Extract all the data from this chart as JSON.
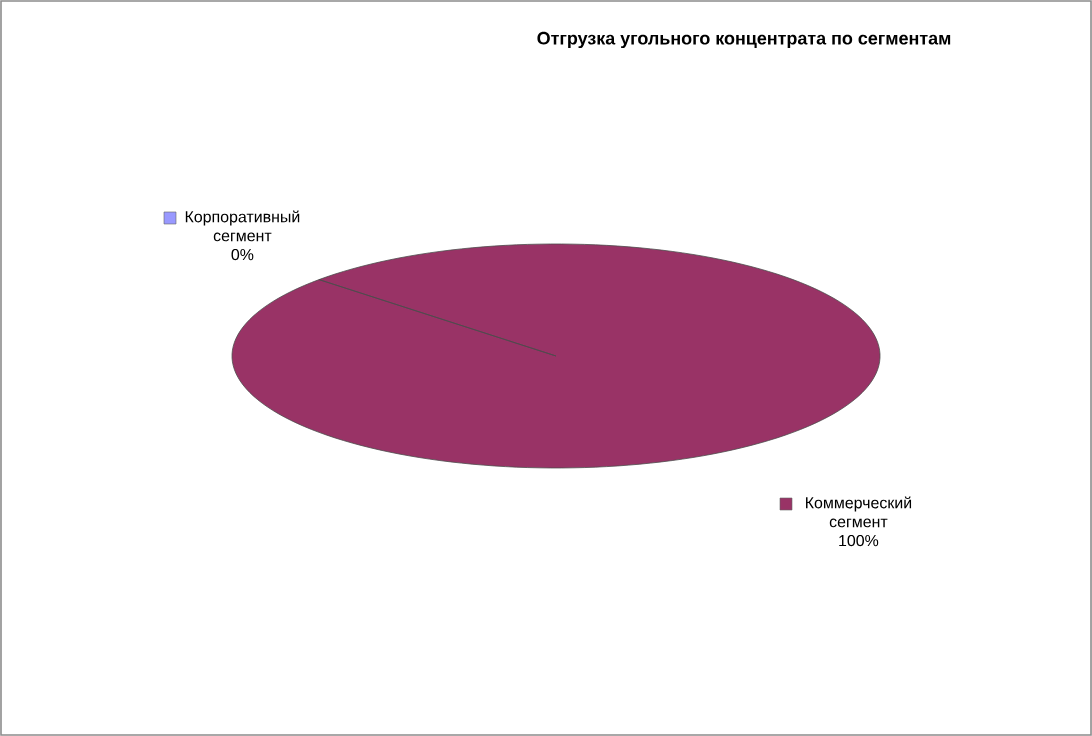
{
  "chart_data": {
    "type": "pie",
    "title": "Отгрузка угольного  концентрата  по сегментам",
    "categories": [
      "Корпоративный сегмент",
      "Коммерческий сегмент"
    ],
    "values": [
      0,
      100
    ],
    "value_labels": [
      "0%",
      "100%"
    ],
    "colors": [
      "#9999ff",
      "#993366"
    ]
  }
}
